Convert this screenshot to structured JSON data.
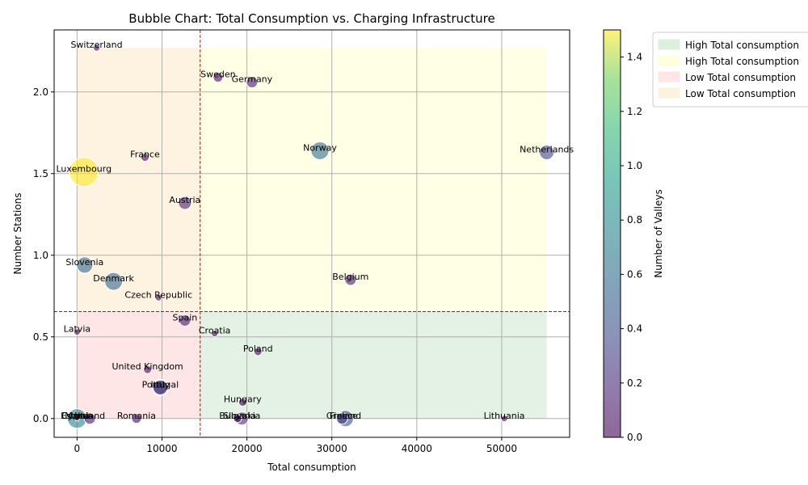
{
  "chart_data": {
    "type": "scatter",
    "title": "Bubble Chart: Total Consumption vs. Charging Infrastructure",
    "xlabel": "Total consumption",
    "ylabel": "Number Stations",
    "xlim": [
      -2700,
      58000
    ],
    "ylim": [
      -0.115,
      2.38
    ],
    "xticks": [
      0,
      10000,
      20000,
      30000,
      40000,
      50000
    ],
    "yticks": [
      0.0,
      0.5,
      1.0,
      1.5,
      2.0
    ],
    "grid": true,
    "threshold_x": 14500,
    "threshold_y": 0.655,
    "region_xlim": [
      0,
      55300
    ],
    "region_ylim": [
      0,
      2.27
    ],
    "colorbar": {
      "label": "Number of Valleys",
      "min": 0.0,
      "max": 1.5,
      "ticks": [
        0.0,
        0.2,
        0.4,
        0.6,
        0.8,
        1.0,
        1.2,
        1.4
      ]
    },
    "legend": {
      "placement": "outside-top-right",
      "entries": [
        {
          "label": "High Total consumption",
          "color": "#c8e6c9"
        },
        {
          "label": "High Total consumption",
          "color": "#ffffcc"
        },
        {
          "label": "Low Total consumption",
          "color": "#ffd6d6"
        },
        {
          "label": "Low Total consumption",
          "color": "#fde9cc"
        }
      ]
    },
    "points": [
      {
        "label": "Switzerland",
        "x": 2300,
        "y": 2.27,
        "size": 4,
        "valleys": 0.0
      },
      {
        "label": "Sweden",
        "x": 16600,
        "y": 2.09,
        "size": 6,
        "valleys": 0.05
      },
      {
        "label": "Germany",
        "x": 20600,
        "y": 2.06,
        "size": 7,
        "valleys": 0.1
      },
      {
        "label": "Norway",
        "x": 28600,
        "y": 1.64,
        "size": 11,
        "valleys": 0.6
      },
      {
        "label": "Netherlands",
        "x": 55300,
        "y": 1.63,
        "size": 9,
        "valleys": 0.35
      },
      {
        "label": "France",
        "x": 8000,
        "y": 1.6,
        "size": 5,
        "valleys": 0.0
      },
      {
        "label": "Luxembourg",
        "x": 800,
        "y": 1.51,
        "size": 18,
        "valleys": 1.5
      },
      {
        "label": "Austria",
        "x": 12700,
        "y": 1.32,
        "size": 8,
        "valleys": 0.15
      },
      {
        "label": "Slovenia",
        "x": 900,
        "y": 0.94,
        "size": 10,
        "valleys": 0.55
      },
      {
        "label": "Denmark",
        "x": 4300,
        "y": 0.84,
        "size": 11,
        "valleys": 0.55
      },
      {
        "label": "Belgium",
        "x": 32200,
        "y": 0.85,
        "size": 7,
        "valleys": 0.1
      },
      {
        "label": "Czech Republic",
        "x": 9600,
        "y": 0.74,
        "size": 4,
        "valleys": 0.0
      },
      {
        "label": "Spain",
        "x": 12700,
        "y": 0.6,
        "size": 7,
        "valleys": 0.1
      },
      {
        "label": "Latvia",
        "x": 0,
        "y": 0.53,
        "size": 4,
        "valleys": 0.0
      },
      {
        "label": "Croatia",
        "x": 16200,
        "y": 0.52,
        "size": 4,
        "valleys": 0.0
      },
      {
        "label": "Poland",
        "x": 21300,
        "y": 0.41,
        "size": 5,
        "valleys": 0.0
      },
      {
        "label": "United Kingdom",
        "x": 8300,
        "y": 0.3,
        "size": 5,
        "valleys": 0.0
      },
      {
        "label": "Italy",
        "x": 9800,
        "y": 0.19,
        "size": 10,
        "valleys": 0.3
      },
      {
        "label": "Portugal",
        "x": 9800,
        "y": 0.19,
        "size": 9,
        "valleys": 0.25
      },
      {
        "label": "Hungary",
        "x": 19500,
        "y": 0.1,
        "size": 5,
        "valleys": 0.0
      },
      {
        "label": "Romania",
        "x": 7000,
        "y": 0.0,
        "size": 6,
        "valleys": 0.05
      },
      {
        "label": "Bulgaria",
        "x": 18900,
        "y": 0.0,
        "size": 5,
        "valleys": 0.0
      },
      {
        "label": "Slovakia",
        "x": 19400,
        "y": 0.0,
        "size": 8,
        "valleys": 0.2
      },
      {
        "label": "Greece",
        "x": 31200,
        "y": 0.0,
        "size": 7,
        "valleys": 0.3
      },
      {
        "label": "Finland",
        "x": 31600,
        "y": 0.0,
        "size": 10,
        "valleys": 0.4
      },
      {
        "label": "Lithuania",
        "x": 50300,
        "y": 0.0,
        "size": 4,
        "valleys": 0.0
      },
      {
        "label": "Ireland",
        "x": 1500,
        "y": 0.0,
        "size": 7,
        "valleys": 0.1
      },
      {
        "label": "Estonia",
        "x": 0,
        "y": 0.0,
        "size": 12,
        "valleys": 0.75
      },
      {
        "label": "Cyprus",
        "x": 0,
        "y": 0.0,
        "size": 3,
        "valleys": 0.0
      },
      {
        "label": "Malta",
        "x": 0,
        "y": 0.0,
        "size": 3,
        "valleys": 0.0
      }
    ]
  }
}
